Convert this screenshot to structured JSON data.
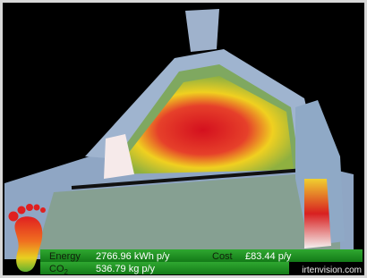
{
  "overlay": {
    "energy_label": "Energy",
    "energy_value": "2766.96 kWh p/y",
    "cost_label": "Cost",
    "cost_value": "£83.44 p/y",
    "co2_label": {
      "main": "CO",
      "sub": "2"
    },
    "co2_value": "536.79 kg p/y",
    "credit": "irtenvision.com"
  }
}
